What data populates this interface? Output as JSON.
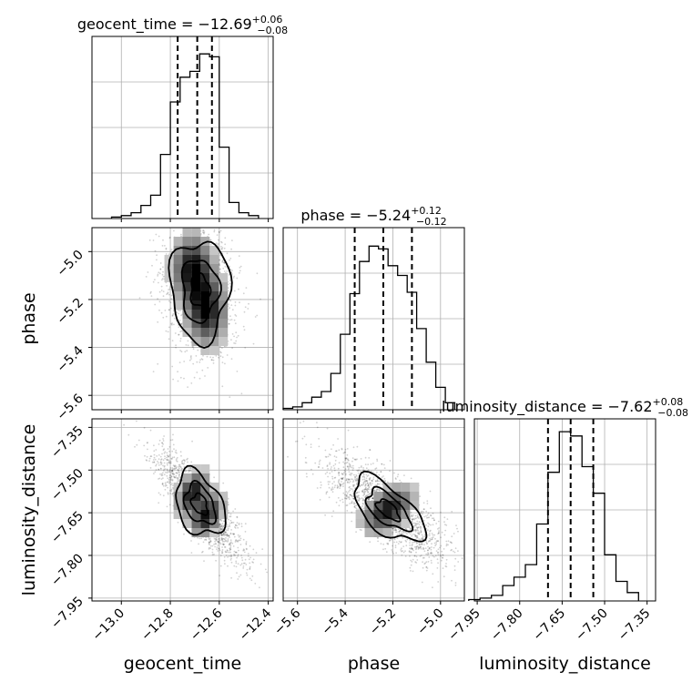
{
  "chart_data": {
    "type": "corner",
    "parameters": [
      {
        "name": "geocent_time",
        "label": "geocent_time",
        "range": [
          -13.12,
          -12.38
        ],
        "ticks": [
          -13.0,
          -12.8,
          -12.6,
          -12.4
        ],
        "tick_labels": [
          "−13.0",
          "−12.8",
          "−12.6",
          "−12.4"
        ],
        "median": -12.69,
        "plus": "+0.06",
        "minus": "−0.08",
        "title_main": "geocent_time = −12.69",
        "title_plus": "+0.06",
        "title_minus": "−0.08",
        "quantiles": [
          -12.77,
          -12.69,
          -12.63
        ]
      },
      {
        "name": "phase",
        "label": "phase",
        "range": [
          -5.66,
          -4.9
        ],
        "ticks": [
          -5.6,
          -5.4,
          -5.2,
          -5.0
        ],
        "tick_labels": [
          "−5.6",
          "−5.4",
          "−5.2",
          "−5.0"
        ],
        "median": -5.24,
        "plus": "+0.12",
        "minus": "−0.12",
        "title_main": "phase = −5.24",
        "title_plus": "+0.12",
        "title_minus": "−0.12",
        "quantiles": [
          -5.36,
          -5.24,
          -5.12
        ]
      },
      {
        "name": "luminosity_distance",
        "label": "luminosity_distance",
        "range": [
          -7.96,
          -7.32
        ],
        "ticks": [
          -7.95,
          -7.8,
          -7.65,
          -7.5,
          -7.35
        ],
        "tick_labels": [
          "−7.95",
          "−7.80",
          "−7.65",
          "−7.50",
          "−7.35"
        ],
        "median": -7.62,
        "plus": "+0.08",
        "minus": "−0.08",
        "title_main": "luminosity_distance = −7.62",
        "title_plus": "+0.08",
        "title_minus": "−0.08",
        "quantiles": [
          -7.7,
          -7.62,
          -7.54
        ]
      }
    ],
    "histograms": [
      {
        "param": "geocent_time",
        "bin_edges": [
          -13.04,
          -13.0,
          -12.96,
          -12.92,
          -12.88,
          -12.84,
          -12.8,
          -12.76,
          -12.72,
          -12.68,
          -12.64,
          -12.6,
          -12.56,
          -12.52,
          -12.48,
          -12.44
        ],
        "counts": [
          1,
          2,
          4,
          9,
          16,
          44,
          80,
          97,
          101,
          113,
          111,
          49,
          11,
          4,
          2
        ],
        "max": 120
      },
      {
        "param": "phase",
        "bin_edges": [
          -5.66,
          -5.62,
          -5.58,
          -5.54,
          -5.5,
          -5.46,
          -5.42,
          -5.38,
          -5.34,
          -5.3,
          -5.26,
          -5.22,
          -5.18,
          -5.14,
          -5.1,
          -5.06,
          -5.02,
          -4.98,
          -4.94
        ],
        "counts": [
          1,
          2,
          5,
          9,
          13,
          26,
          54,
          83,
          106,
          117,
          115,
          103,
          96,
          84,
          58,
          34,
          16,
          5
        ],
        "max": 125
      },
      {
        "param": "luminosity_distance",
        "bin_edges": [
          -7.98,
          -7.94,
          -7.9,
          -7.86,
          -7.82,
          -7.78,
          -7.74,
          -7.7,
          -7.66,
          -7.62,
          -7.58,
          -7.54,
          -7.5,
          -7.46,
          -7.42,
          -7.38
        ],
        "counts": [
          1,
          2,
          4,
          11,
          17,
          26,
          55,
          92,
          121,
          118,
          96,
          77,
          33,
          14,
          6
        ],
        "max": 125
      }
    ],
    "pairs": [
      {
        "x": "geocent_time",
        "y": "phase",
        "centers": [
          [
            -12.71,
            -5.07
          ],
          [
            -12.65,
            -5.25
          ]
        ],
        "spread": [
          0.08,
          0.14
        ]
      },
      {
        "x": "geocent_time",
        "y": "luminosity_distance",
        "centers": [
          [
            -12.71,
            -7.58
          ],
          [
            -12.65,
            -7.66
          ]
        ],
        "spread": [
          0.08,
          0.09
        ]
      },
      {
        "x": "phase",
        "y": "luminosity_distance",
        "centers": [
          [
            -5.22,
            -7.64
          ]
        ],
        "spread": [
          0.13,
          0.1
        ]
      }
    ],
    "grid": true
  }
}
